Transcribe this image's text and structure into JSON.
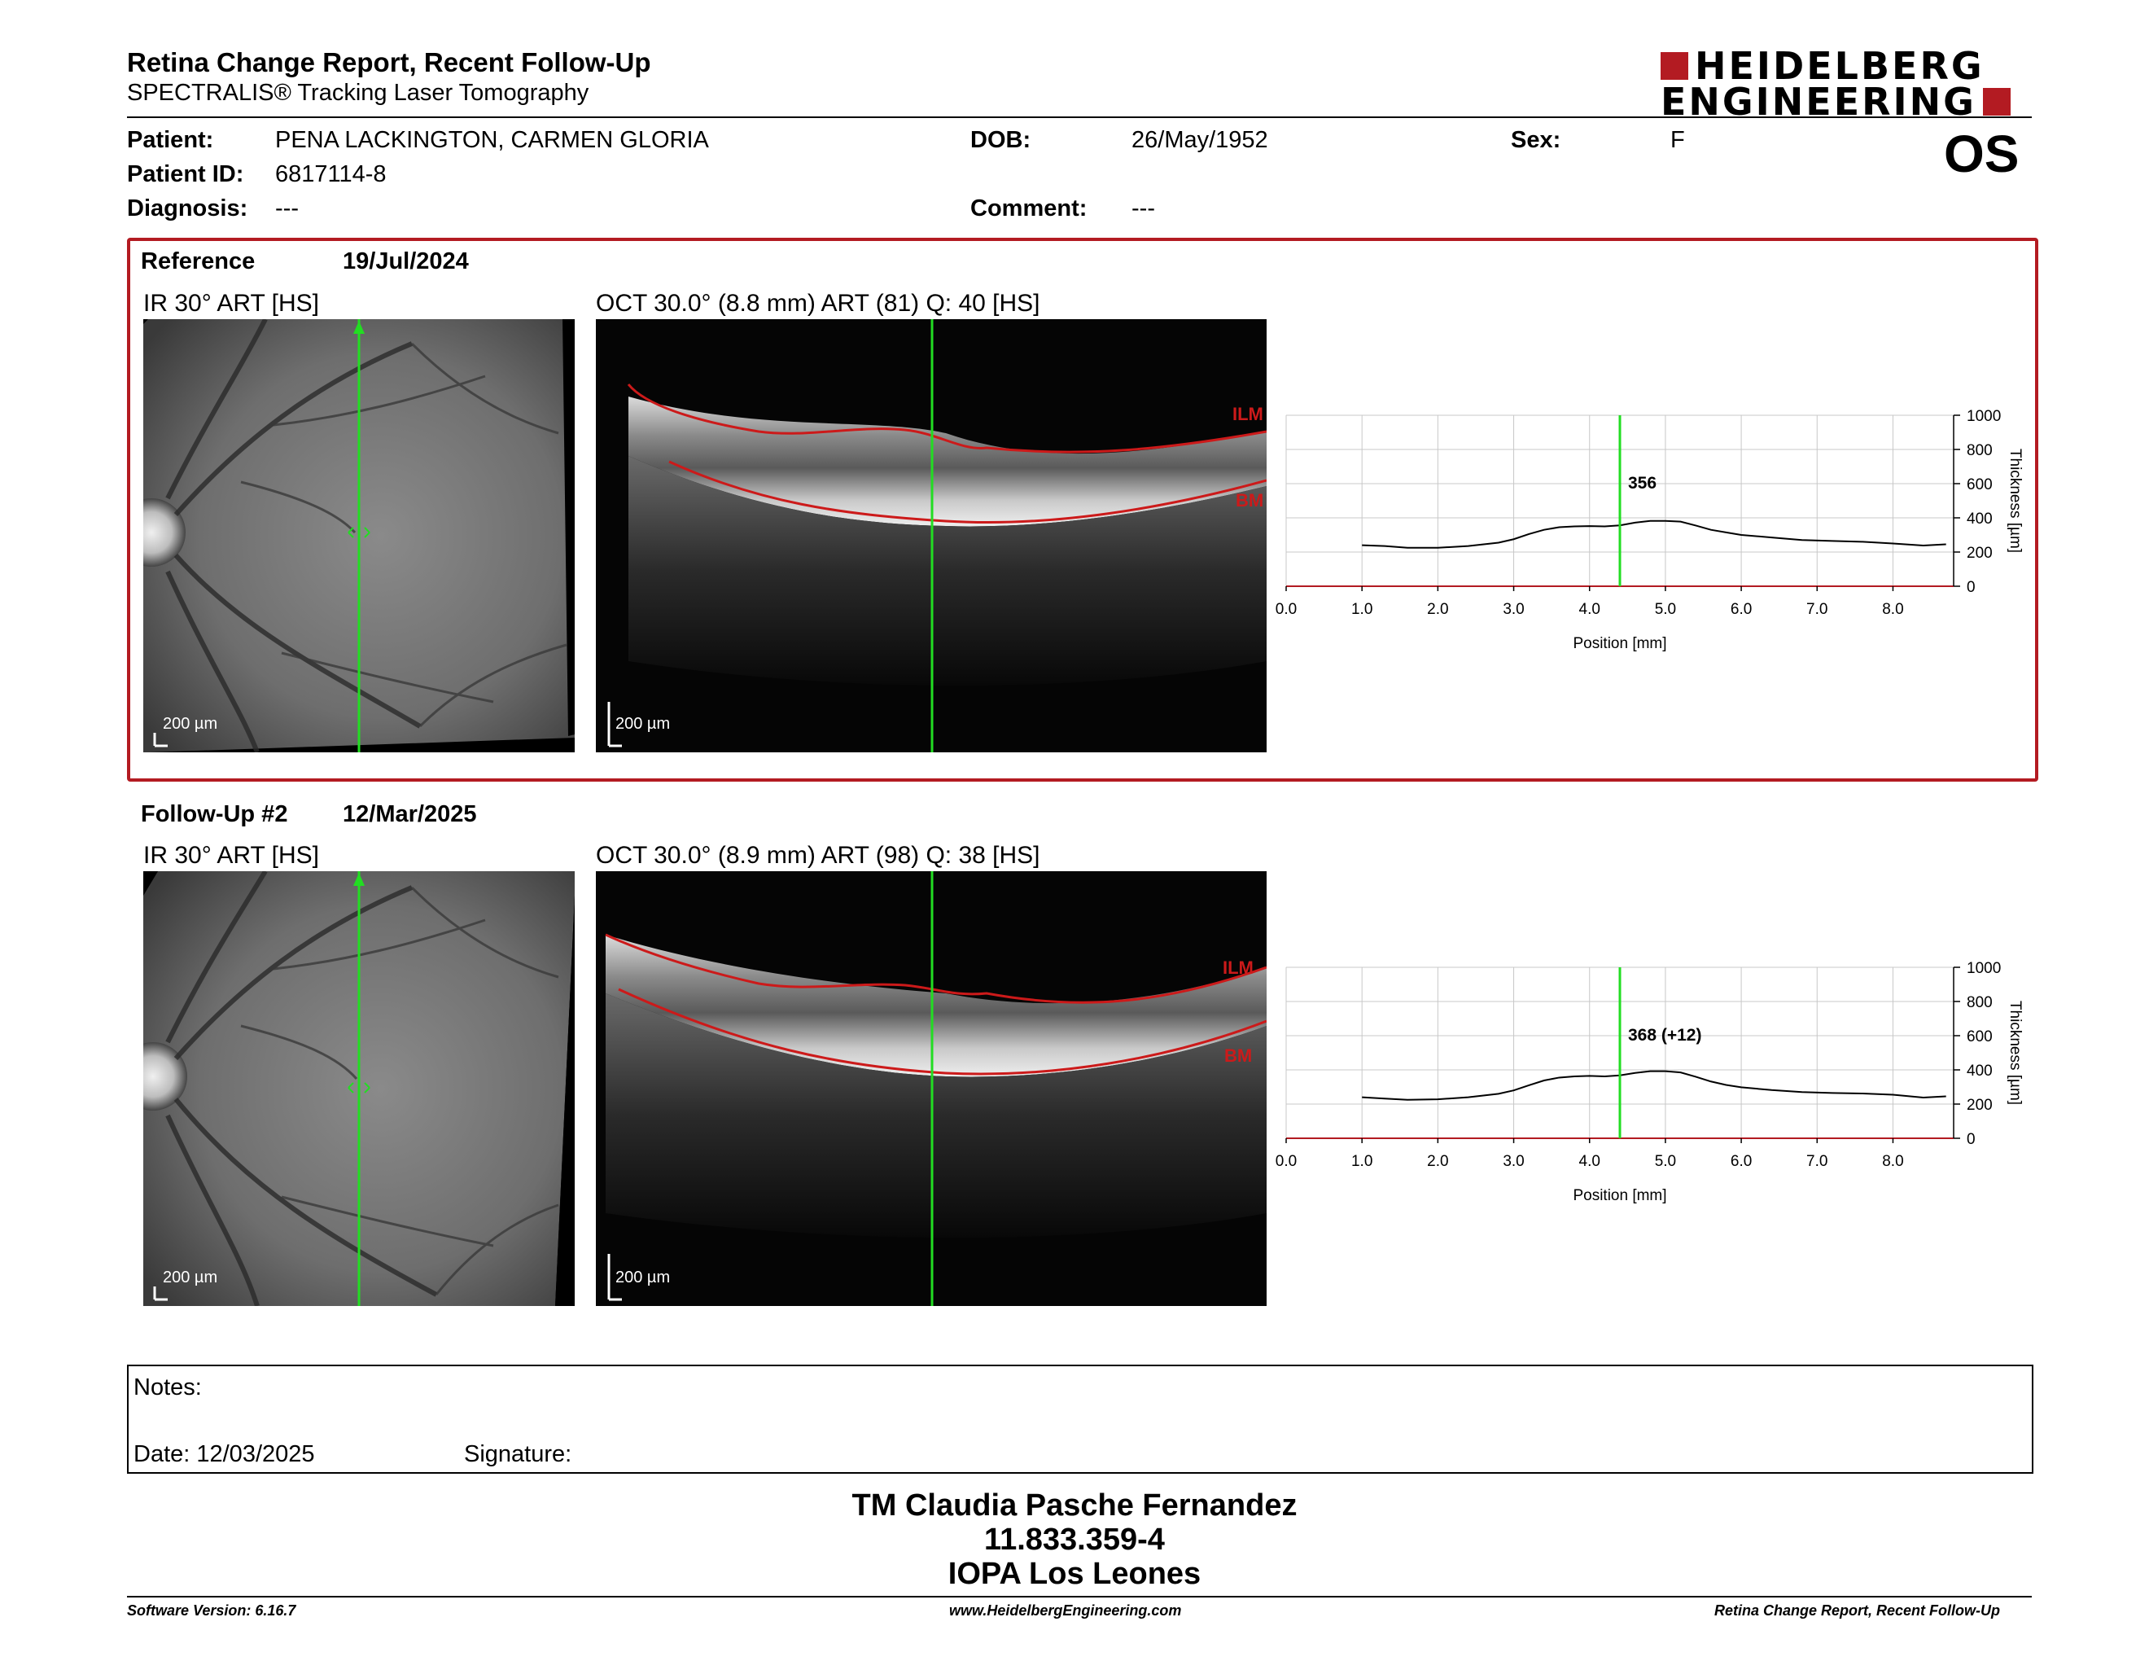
{
  "header": {
    "title": "Retina Change Report, Recent Follow-Up",
    "subtitle": "SPECTRALIS® Tracking Laser Tomography",
    "logo_line1": "HEIDELBERG",
    "logo_line2": "ENGINEERING",
    "eye": "OS"
  },
  "patient": {
    "patient_label": "Patient:",
    "patient_value": "PENA LACKINGTON, CARMEN GLORIA",
    "id_label": "Patient ID:",
    "id_value": "6817114-8",
    "diagnosis_label": "Diagnosis:",
    "diagnosis_value": "---",
    "dob_label": "DOB:",
    "dob_value": "26/May/1952",
    "comment_label": "Comment:",
    "comment_value": "---",
    "sex_label": "Sex:",
    "sex_value": "F"
  },
  "reference": {
    "label": "Reference",
    "date": "19/Jul/2024",
    "ir_title": "IR 30° ART [HS]",
    "oct_title": "OCT 30.0° (8.8 mm) ART (81) Q: 40 [HS]",
    "scale": "200 µm",
    "ilm": "ILM",
    "bm": "BM",
    "thickness_label": "356"
  },
  "followup": {
    "label": "Follow-Up #2",
    "date": "12/Mar/2025",
    "ir_title": "IR 30° ART [HS]",
    "oct_title": "OCT 30.0° (8.9 mm) ART (98) Q: 38 [HS]",
    "scale": "200 µm",
    "ilm": "ILM",
    "bm": "BM",
    "thickness_label": "368 (+12)"
  },
  "chart_data": [
    {
      "type": "line",
      "xlabel": "Position [mm]",
      "ylabel": "Thickness [µm]",
      "xlim": [
        0,
        8.8
      ],
      "ylim": [
        0,
        1000
      ],
      "x_ticks": [
        "0.0",
        "1.0",
        "2.0",
        "3.0",
        "4.0",
        "5.0",
        "6.0",
        "7.0",
        "8.0"
      ],
      "y_ticks": [
        "0",
        "200",
        "400",
        "600",
        "800",
        "1000"
      ],
      "grid": true,
      "marker_x": 4.4,
      "marker_label": "356",
      "series": [
        {
          "x": [
            1.0,
            1.3,
            1.6,
            2.0,
            2.4,
            2.8,
            3.0,
            3.2,
            3.4,
            3.6,
            3.8,
            4.0,
            4.2,
            4.4,
            4.6,
            4.8,
            5.0,
            5.2,
            5.4,
            5.6,
            5.8,
            6.0,
            6.4,
            6.8,
            7.2,
            7.6,
            8.0,
            8.4,
            8.7
          ],
          "y": [
            240,
            235,
            225,
            225,
            235,
            255,
            275,
            305,
            330,
            345,
            350,
            352,
            350,
            356,
            372,
            382,
            382,
            378,
            355,
            330,
            315,
            300,
            285,
            270,
            265,
            260,
            250,
            238,
            245
          ]
        }
      ]
    },
    {
      "type": "line",
      "xlabel": "Position [mm]",
      "ylabel": "Thickness [µm]",
      "xlim": [
        0,
        8.8
      ],
      "ylim": [
        0,
        1000
      ],
      "x_ticks": [
        "0.0",
        "1.0",
        "2.0",
        "3.0",
        "4.0",
        "5.0",
        "6.0",
        "7.0",
        "8.0"
      ],
      "y_ticks": [
        "0",
        "200",
        "400",
        "600",
        "800",
        "1000"
      ],
      "grid": true,
      "marker_x": 4.4,
      "marker_label": "368 (+12)",
      "series": [
        {
          "x": [
            1.0,
            1.3,
            1.6,
            2.0,
            2.4,
            2.8,
            3.0,
            3.2,
            3.4,
            3.6,
            3.8,
            4.0,
            4.2,
            4.4,
            4.6,
            4.8,
            5.0,
            5.2,
            5.4,
            5.6,
            5.8,
            6.0,
            6.4,
            6.8,
            7.2,
            7.6,
            8.0,
            8.4,
            8.7
          ],
          "y": [
            240,
            232,
            225,
            228,
            240,
            260,
            280,
            310,
            338,
            355,
            362,
            365,
            362,
            368,
            382,
            392,
            392,
            385,
            360,
            332,
            312,
            298,
            282,
            270,
            265,
            262,
            255,
            238,
            245
          ]
        }
      ]
    }
  ],
  "notes": {
    "notes_label": "Notes:",
    "date_label": "Date: 12/03/2025",
    "signature_label": "Signature:"
  },
  "footer": {
    "line1": "TM Claudia Pasche Fernandez",
    "line2": "11.833.359-4",
    "line3": "IOPA Los Leones",
    "software": "Software Version: 6.16.7",
    "website": "www.HeidelbergEngineering.com",
    "report_name": "Retina Change Report, Recent Follow-Up"
  },
  "colors": {
    "brand_red": "#b31b22",
    "scan_green": "#22dd22",
    "layer_red": "#cc1a1a"
  }
}
